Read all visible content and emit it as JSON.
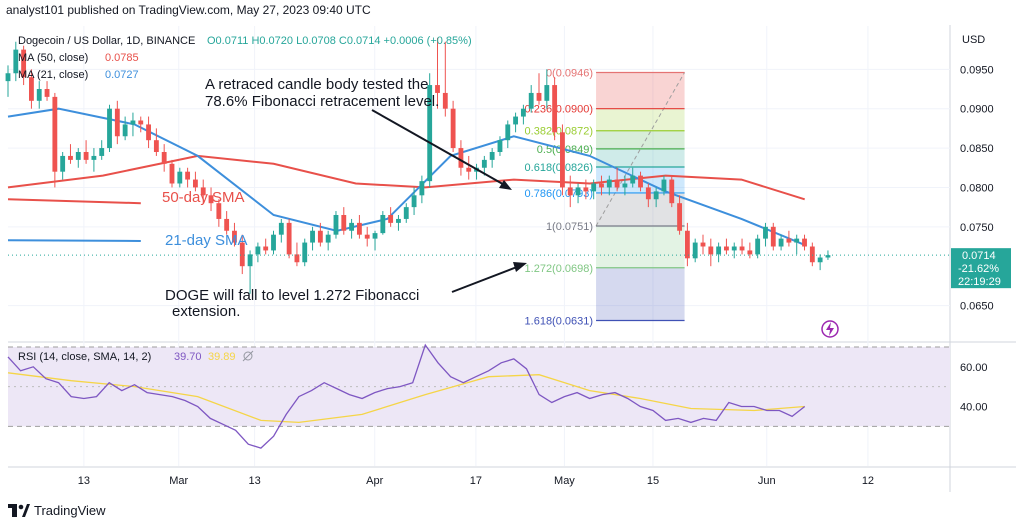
{
  "header": {
    "publisher": "analyst101 published on TradingView.com, May 27, 2023 09:40 UTC"
  },
  "legend": {
    "symbol": "Dogecoin / US Dollar, 1D, BINANCE",
    "ohlc": "O0.0711 H0.0720 L0.0708 C0.0714 +0.0006 (+0.85%)",
    "ma50": "MA (50, close)",
    "ma50_value": "0.0785",
    "ma21": "MA (21, close)",
    "ma21_value": "0.0727"
  },
  "price_axis": {
    "currency": "USD",
    "ticks": [
      "0.0950",
      "0.0900",
      "0.0850",
      "0.0800",
      "0.0750",
      "0.0650"
    ],
    "last_price": "0.0714",
    "last_change": "-21.62%",
    "countdown": "22:19:29"
  },
  "rsi": {
    "legend": "RSI (14, close, SMA, 14, 2)",
    "value": "39.70",
    "sma_value": "39.89",
    "ticks": [
      "60.00",
      "40.00"
    ],
    "upper_band": 70,
    "lower_band": 30
  },
  "x_axis": {
    "ticks": [
      "13",
      "Mar",
      "13",
      "Apr",
      "17",
      "May",
      "15",
      "Jun",
      "12"
    ]
  },
  "annotations": {
    "retrace": [
      "A retraced candle body tested the",
      "78.6% Fibonacci retracement level."
    ],
    "sma50": "50-day SMA",
    "sma21": "21-day SMA",
    "target": [
      "DOGE will fall to level 1.272 Fibonacci",
      "extension."
    ]
  },
  "fibonacci": [
    {
      "level": "0",
      "price": 0.0946,
      "label": "0(0.0946)",
      "color": "#e57373"
    },
    {
      "level": "0.236",
      "price": 0.09,
      "label": "0.236(0.0900)",
      "color": "#e53935"
    },
    {
      "level": "0.382",
      "price": 0.0872,
      "label": "0.382(0.0872)",
      "color": "#9acd32"
    },
    {
      "level": "0.5",
      "price": 0.0849,
      "label": "0.5(0.0849)",
      "color": "#4caf50"
    },
    {
      "level": "0.618",
      "price": 0.0826,
      "label": "0.618(0.0826)",
      "color": "#26a69a"
    },
    {
      "level": "0.786",
      "price": 0.0793,
      "label": "0.786(0.0793)",
      "color": "#2196f3"
    },
    {
      "level": "1",
      "price": 0.0751,
      "label": "1(0.0751)",
      "color": "#787b86"
    },
    {
      "level": "1.272",
      "price": 0.0698,
      "label": "1.272(0.0698)",
      "color": "#81c784"
    },
    {
      "level": "1.618",
      "price": 0.0631,
      "label": "1.618(0.0631)",
      "color": "#3f51b5"
    }
  ],
  "colors": {
    "up": "#26a69a",
    "down": "#ef5350",
    "ma50": "#e8504a",
    "ma21": "#3d8fdc",
    "rsi": "#7e57c2",
    "rsi_sma": "#f5d547",
    "rsi_band_fill": "#ede7f6"
  },
  "footer": {
    "brand": "TradingView"
  },
  "chart_data": {
    "type": "candlestick",
    "y_unit": "USD",
    "ylim": [
      0.0605,
      0.1005
    ],
    "rsi_ylim": [
      10,
      72
    ],
    "x_range_days": [
      0,
      130
    ],
    "x_tick_days": [
      12,
      27,
      39,
      58,
      74,
      88,
      102,
      120,
      136
    ],
    "candles": [
      [
        0.0935,
        0.0955,
        0.0915,
        0.0945
      ],
      [
        0.0945,
        0.0985,
        0.0935,
        0.0975
      ],
      [
        0.0975,
        0.098,
        0.093,
        0.094
      ],
      [
        0.094,
        0.095,
        0.09,
        0.091
      ],
      [
        0.091,
        0.0935,
        0.09,
        0.0925
      ],
      [
        0.0925,
        0.0935,
        0.091,
        0.0915
      ],
      [
        0.0915,
        0.092,
        0.08,
        0.082
      ],
      [
        0.082,
        0.0845,
        0.081,
        0.084
      ],
      [
        0.084,
        0.0855,
        0.083,
        0.0835
      ],
      [
        0.0835,
        0.085,
        0.0825,
        0.0845
      ],
      [
        0.0845,
        0.086,
        0.083,
        0.0835
      ],
      [
        0.0835,
        0.085,
        0.082,
        0.084
      ],
      [
        0.084,
        0.086,
        0.0835,
        0.085
      ],
      [
        0.085,
        0.0905,
        0.0845,
        0.09
      ],
      [
        0.09,
        0.091,
        0.0855,
        0.0865
      ],
      [
        0.0865,
        0.089,
        0.086,
        0.088
      ],
      [
        0.088,
        0.0895,
        0.0865,
        0.0885
      ],
      [
        0.0885,
        0.089,
        0.087,
        0.088
      ],
      [
        0.088,
        0.089,
        0.085,
        0.086
      ],
      [
        0.086,
        0.0875,
        0.084,
        0.0845
      ],
      [
        0.0845,
        0.0855,
        0.082,
        0.083
      ],
      [
        0.083,
        0.0835,
        0.08,
        0.0805
      ],
      [
        0.0805,
        0.0825,
        0.08,
        0.082
      ],
      [
        0.082,
        0.0825,
        0.08,
        0.081
      ],
      [
        0.081,
        0.082,
        0.0795,
        0.08
      ],
      [
        0.08,
        0.081,
        0.078,
        0.079
      ],
      [
        0.079,
        0.08,
        0.077,
        0.078
      ],
      [
        0.078,
        0.0785,
        0.075,
        0.076
      ],
      [
        0.076,
        0.077,
        0.074,
        0.0745
      ],
      [
        0.0745,
        0.0755,
        0.0725,
        0.073
      ],
      [
        0.073,
        0.074,
        0.069,
        0.07
      ],
      [
        0.07,
        0.072,
        0.0665,
        0.0715
      ],
      [
        0.0715,
        0.073,
        0.0705,
        0.0725
      ],
      [
        0.0725,
        0.0735,
        0.0715,
        0.072
      ],
      [
        0.072,
        0.0745,
        0.0715,
        0.074
      ],
      [
        0.074,
        0.076,
        0.073,
        0.0755
      ],
      [
        0.0755,
        0.076,
        0.071,
        0.0715
      ],
      [
        0.0715,
        0.073,
        0.07,
        0.0705
      ],
      [
        0.0705,
        0.0735,
        0.07,
        0.073
      ],
      [
        0.073,
        0.075,
        0.072,
        0.0745
      ],
      [
        0.0745,
        0.0755,
        0.0725,
        0.073
      ],
      [
        0.073,
        0.0745,
        0.072,
        0.074
      ],
      [
        0.074,
        0.077,
        0.0735,
        0.0765
      ],
      [
        0.0765,
        0.0775,
        0.074,
        0.0745
      ],
      [
        0.0745,
        0.076,
        0.0735,
        0.0755
      ],
      [
        0.0755,
        0.0765,
        0.0735,
        0.074
      ],
      [
        0.074,
        0.075,
        0.0725,
        0.0735
      ],
      [
        0.0735,
        0.0745,
        0.072,
        0.0742
      ],
      [
        0.0742,
        0.077,
        0.074,
        0.0765
      ],
      [
        0.0765,
        0.0775,
        0.075,
        0.0755
      ],
      [
        0.0755,
        0.0765,
        0.0745,
        0.076
      ],
      [
        0.076,
        0.078,
        0.0755,
        0.0775
      ],
      [
        0.0775,
        0.08,
        0.0765,
        0.079
      ],
      [
        0.079,
        0.0815,
        0.078,
        0.0808
      ],
      [
        0.0808,
        0.0945,
        0.08,
        0.093
      ],
      [
        0.093,
        0.099,
        0.09,
        0.092
      ],
      [
        0.092,
        0.0985,
        0.089,
        0.09
      ],
      [
        0.09,
        0.091,
        0.0845,
        0.085
      ],
      [
        0.085,
        0.086,
        0.0815,
        0.0825
      ],
      [
        0.0825,
        0.084,
        0.081,
        0.082
      ],
      [
        0.082,
        0.083,
        0.081,
        0.0825
      ],
      [
        0.0825,
        0.084,
        0.0815,
        0.0835
      ],
      [
        0.0835,
        0.085,
        0.0825,
        0.0845
      ],
      [
        0.0845,
        0.0865,
        0.084,
        0.086
      ],
      [
        0.086,
        0.0885,
        0.085,
        0.088
      ],
      [
        0.088,
        0.0895,
        0.087,
        0.089
      ],
      [
        0.089,
        0.0905,
        0.088,
        0.09
      ],
      [
        0.09,
        0.093,
        0.0895,
        0.092
      ],
      [
        0.092,
        0.0945,
        0.0905,
        0.091
      ],
      [
        0.091,
        0.095,
        0.09,
        0.093
      ],
      [
        0.093,
        0.094,
        0.086,
        0.087
      ],
      [
        0.087,
        0.088,
        0.079,
        0.08
      ],
      [
        0.08,
        0.0815,
        0.0775,
        0.079
      ],
      [
        0.079,
        0.0805,
        0.078,
        0.08
      ],
      [
        0.08,
        0.081,
        0.0785,
        0.0795
      ],
      [
        0.0795,
        0.081,
        0.0785,
        0.0805
      ],
      [
        0.0805,
        0.0815,
        0.079,
        0.08
      ],
      [
        0.08,
        0.0815,
        0.079,
        0.081
      ],
      [
        0.081,
        0.0825,
        0.0795,
        0.08
      ],
      [
        0.08,
        0.0815,
        0.079,
        0.0805
      ],
      [
        0.0805,
        0.0825,
        0.08,
        0.0815
      ],
      [
        0.0815,
        0.082,
        0.0795,
        0.08
      ],
      [
        0.08,
        0.0805,
        0.0775,
        0.0785
      ],
      [
        0.0785,
        0.08,
        0.0775,
        0.0795
      ],
      [
        0.0795,
        0.0815,
        0.079,
        0.081
      ],
      [
        0.081,
        0.0815,
        0.0775,
        0.078
      ],
      [
        0.078,
        0.079,
        0.074,
        0.0745
      ],
      [
        0.0745,
        0.0755,
        0.07,
        0.071
      ],
      [
        0.071,
        0.0735,
        0.0705,
        0.073
      ],
      [
        0.073,
        0.074,
        0.0715,
        0.0725
      ],
      [
        0.0725,
        0.0735,
        0.07,
        0.0715
      ],
      [
        0.0715,
        0.073,
        0.0705,
        0.0725
      ],
      [
        0.0725,
        0.0735,
        0.0715,
        0.072
      ],
      [
        0.072,
        0.073,
        0.071,
        0.0725
      ],
      [
        0.0725,
        0.0735,
        0.0715,
        0.072
      ],
      [
        0.072,
        0.073,
        0.071,
        0.0715
      ],
      [
        0.0715,
        0.074,
        0.071,
        0.0735
      ],
      [
        0.0735,
        0.0755,
        0.0725,
        0.075
      ],
      [
        0.075,
        0.0755,
        0.072,
        0.0725
      ],
      [
        0.0725,
        0.074,
        0.072,
        0.0735
      ],
      [
        0.0735,
        0.0745,
        0.0725,
        0.073
      ],
      [
        0.073,
        0.074,
        0.0715,
        0.0735
      ],
      [
        0.0735,
        0.074,
        0.072,
        0.0725
      ],
      [
        0.0725,
        0.073,
        0.07,
        0.0705
      ],
      [
        0.0705,
        0.0715,
        0.0695,
        0.0711
      ],
      [
        0.0711,
        0.072,
        0.0708,
        0.0714
      ]
    ],
    "candle_start_day": 0,
    "candle_step_days": 1.235,
    "ma50": {
      "name": "50-day SMA",
      "points": [
        [
          0,
          0.08
        ],
        [
          15,
          0.0815
        ],
        [
          30,
          0.084
        ],
        [
          42,
          0.083
        ],
        [
          55,
          0.0805
        ],
        [
          66,
          0.08
        ],
        [
          80,
          0.081
        ],
        [
          92,
          0.0805
        ],
        [
          104,
          0.0815
        ],
        [
          116,
          0.081
        ],
        [
          126,
          0.0785
        ]
      ]
    },
    "ma50_old_segment": [
      [
        0,
        0.0785
      ],
      [
        21,
        0.078
      ]
    ],
    "ma21": {
      "name": "21-day SMA",
      "points": [
        [
          0,
          0.089
        ],
        [
          8,
          0.09
        ],
        [
          20,
          0.088
        ],
        [
          30,
          0.084
        ],
        [
          42,
          0.0765
        ],
        [
          52,
          0.0745
        ],
        [
          60,
          0.076
        ],
        [
          70,
          0.084
        ],
        [
          80,
          0.0865
        ],
        [
          92,
          0.084
        ],
        [
          104,
          0.0795
        ],
        [
          116,
          0.076
        ],
        [
          126,
          0.0727
        ]
      ]
    },
    "ma21_old_segment": [
      [
        0,
        0.0733
      ],
      [
        21,
        0.0732
      ]
    ],
    "rsi_series": [
      [
        0,
        65
      ],
      [
        2,
        58
      ],
      [
        4,
        60
      ],
      [
        6,
        54
      ],
      [
        8,
        52
      ],
      [
        10,
        45
      ],
      [
        12,
        44
      ],
      [
        14,
        45
      ],
      [
        16,
        52
      ],
      [
        18,
        48
      ],
      [
        20,
        51
      ],
      [
        22,
        47
      ],
      [
        24,
        46
      ],
      [
        26,
        45
      ],
      [
        28,
        43
      ],
      [
        30,
        40
      ],
      [
        32,
        34
      ],
      [
        34,
        31
      ],
      [
        36,
        28
      ],
      [
        38,
        21
      ],
      [
        40,
        19
      ],
      [
        42,
        25
      ],
      [
        44,
        36
      ],
      [
        46,
        45
      ],
      [
        48,
        48
      ],
      [
        50,
        52
      ],
      [
        52,
        49
      ],
      [
        54,
        46
      ],
      [
        56,
        44
      ],
      [
        58,
        47
      ],
      [
        60,
        49
      ],
      [
        62,
        50
      ],
      [
        64,
        52
      ],
      [
        66,
        71
      ],
      [
        68,
        62
      ],
      [
        70,
        55
      ],
      [
        72,
        52
      ],
      [
        74,
        55
      ],
      [
        76,
        58
      ],
      [
        78,
        62
      ],
      [
        80,
        64
      ],
      [
        82,
        59
      ],
      [
        84,
        46
      ],
      [
        86,
        42
      ],
      [
        88,
        45
      ],
      [
        90,
        47
      ],
      [
        92,
        44
      ],
      [
        94,
        46
      ],
      [
        96,
        47
      ],
      [
        98,
        44
      ],
      [
        100,
        40
      ],
      [
        102,
        38
      ],
      [
        104,
        33
      ],
      [
        106,
        34
      ],
      [
        108,
        32
      ],
      [
        110,
        34
      ],
      [
        112,
        33
      ],
      [
        114,
        42
      ],
      [
        116,
        40
      ],
      [
        118,
        40
      ],
      [
        120,
        38
      ],
      [
        122,
        38
      ],
      [
        124,
        35
      ],
      [
        126,
        40
      ]
    ],
    "rsi_sma_series": [
      [
        0,
        57
      ],
      [
        10,
        53
      ],
      [
        20,
        50
      ],
      [
        30,
        45
      ],
      [
        40,
        33
      ],
      [
        46,
        32
      ],
      [
        56,
        36
      ],
      [
        66,
        46
      ],
      [
        76,
        55
      ],
      [
        84,
        56
      ],
      [
        92,
        48
      ],
      [
        100,
        44
      ],
      [
        108,
        39
      ],
      [
        118,
        38
      ],
      [
        126,
        40
      ]
    ]
  }
}
